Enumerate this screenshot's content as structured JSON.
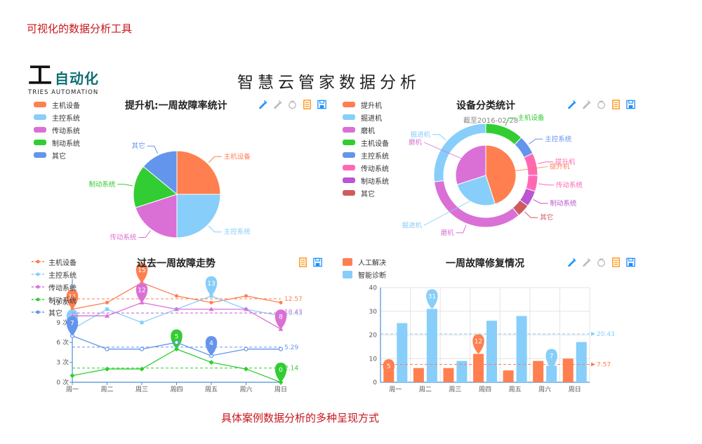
{
  "captions": {
    "top": "可视化的数据分析工具",
    "bottom": "具体案例数据分析的多种呈现方式"
  },
  "logo": {
    "mark": "工",
    "cn": "自动化",
    "en": "TRIES  AUTOMATION"
  },
  "page_title": "智慧云管家数据分析",
  "toolbox_icons": [
    "mark-icon",
    "mark-undo-icon",
    "mark-clear-icon",
    "data-view-icon",
    "save-image-icon"
  ],
  "chart_data": [
    {
      "type": "pie",
      "title": "提升机:一周故障率统计",
      "legend": [
        "主机设备",
        "主控系统",
        "传动系统",
        "制动系统",
        "其它"
      ],
      "slices": [
        {
          "name": "主机设备",
          "value": 25,
          "color": "#ff7f50"
        },
        {
          "name": "主控系统",
          "value": 25,
          "color": "#87cefa"
        },
        {
          "name": "传动系统",
          "value": 20,
          "color": "#da70d6"
        },
        {
          "name": "制动系统",
          "value": 16,
          "color": "#32cd32"
        },
        {
          "name": "其它",
          "value": 14,
          "color": "#6495ed"
        }
      ]
    },
    {
      "type": "pie",
      "title": "设备分类统计",
      "subtitle": "截至2016-02-28",
      "legend": [
        {
          "name": "提升机",
          "color": "#ff7f50"
        },
        {
          "name": "掘进机",
          "color": "#87cefa"
        },
        {
          "name": "磨机",
          "color": "#da70d6"
        },
        {
          "name": "主机设备",
          "color": "#32cd32"
        },
        {
          "name": "主控系统",
          "color": "#6495ed"
        },
        {
          "name": "传动系统",
          "color": "#ff69b4"
        },
        {
          "name": "制动系统",
          "color": "#ba55d3"
        },
        {
          "name": "其它",
          "color": "#cd5c5c"
        }
      ],
      "inner": [
        {
          "name": "提升机",
          "value": 45,
          "color": "#ff7f50"
        },
        {
          "name": "掘进机",
          "value": 25,
          "color": "#87cefa"
        },
        {
          "name": "磨机",
          "value": 30,
          "color": "#da70d6"
        }
      ],
      "outer": [
        {
          "name": "主机设备",
          "value": 12,
          "color": "#32cd32"
        },
        {
          "name": "主控系统",
          "value": 6,
          "color": "#6495ed"
        },
        {
          "name": "提升机",
          "value": 7,
          "color": "#ff69b4"
        },
        {
          "name": "传动系统",
          "value": 5,
          "color": "#ff69b4"
        },
        {
          "name": "制动系统",
          "value": 5,
          "color": "#ba55d3"
        },
        {
          "name": "其它",
          "value": 4,
          "color": "#cd5c5c"
        },
        {
          "name": "磨机",
          "value": 34,
          "color": "#da70d6"
        },
        {
          "name": "掘进机",
          "value": 27,
          "color": "#87cefa"
        }
      ]
    },
    {
      "type": "line",
      "title": "过去一周故障走势",
      "categories": [
        "周一",
        "周二",
        "周三",
        "周四",
        "周五",
        "周六",
        "周日"
      ],
      "yticks": [
        "0 次",
        "3 次",
        "6 次",
        "9 次",
        "12 次"
      ],
      "ylim": [
        0,
        15
      ],
      "series": [
        {
          "name": "主机设备",
          "color": "#ff7f50",
          "marker": "circle",
          "values": [
            11,
            12,
            15,
            13,
            12,
            13,
            12
          ],
          "avg": "12.57",
          "max_label": "15",
          "min_label": "11"
        },
        {
          "name": "主控系统",
          "color": "#87cefa",
          "marker": "square",
          "values": [
            8,
            11,
            9,
            11,
            13,
            11,
            10
          ],
          "avg": "10.43",
          "max_label": "13",
          "min_label": "8"
        },
        {
          "name": "传动系统",
          "color": "#da70d6",
          "marker": "triangle",
          "values": [
            10,
            10,
            12,
            11,
            11,
            11,
            8
          ],
          "avg": "10.43",
          "max_label": "12",
          "min_label": "8"
        },
        {
          "name": "制动系统",
          "color": "#32cd32",
          "marker": "diamond",
          "values": [
            1,
            2,
            2,
            5,
            3,
            2,
            0
          ],
          "avg": "2.14",
          "max_label": "5",
          "min_label": "0"
        },
        {
          "name": "其它",
          "color": "#6495ed",
          "marker": "empty-circle",
          "values": [
            7,
            5,
            5,
            6,
            4,
            5,
            5
          ],
          "avg": "5.29",
          "max_label": "7",
          "min_label": "4"
        }
      ]
    },
    {
      "type": "bar",
      "title": "一周故障修复情况",
      "categories": [
        "周一",
        "周二",
        "周三",
        "周四",
        "周五",
        "周六",
        "周日"
      ],
      "yticks": [
        "0",
        "10",
        "20",
        "30",
        "40"
      ],
      "ylim": [
        0,
        40
      ],
      "series": [
        {
          "name": "人工解决",
          "color": "#ff7f50",
          "values": [
            5,
            6,
            6,
            12,
            5,
            9,
            10
          ],
          "avg": "7.57",
          "max_label": "12",
          "min_label": "5"
        },
        {
          "name": "智能诊断",
          "color": "#87cefa",
          "values": [
            25,
            31,
            9,
            26,
            28,
            7,
            17
          ],
          "avg": "20.43",
          "max_label": "31",
          "min_label": "7"
        }
      ]
    }
  ]
}
